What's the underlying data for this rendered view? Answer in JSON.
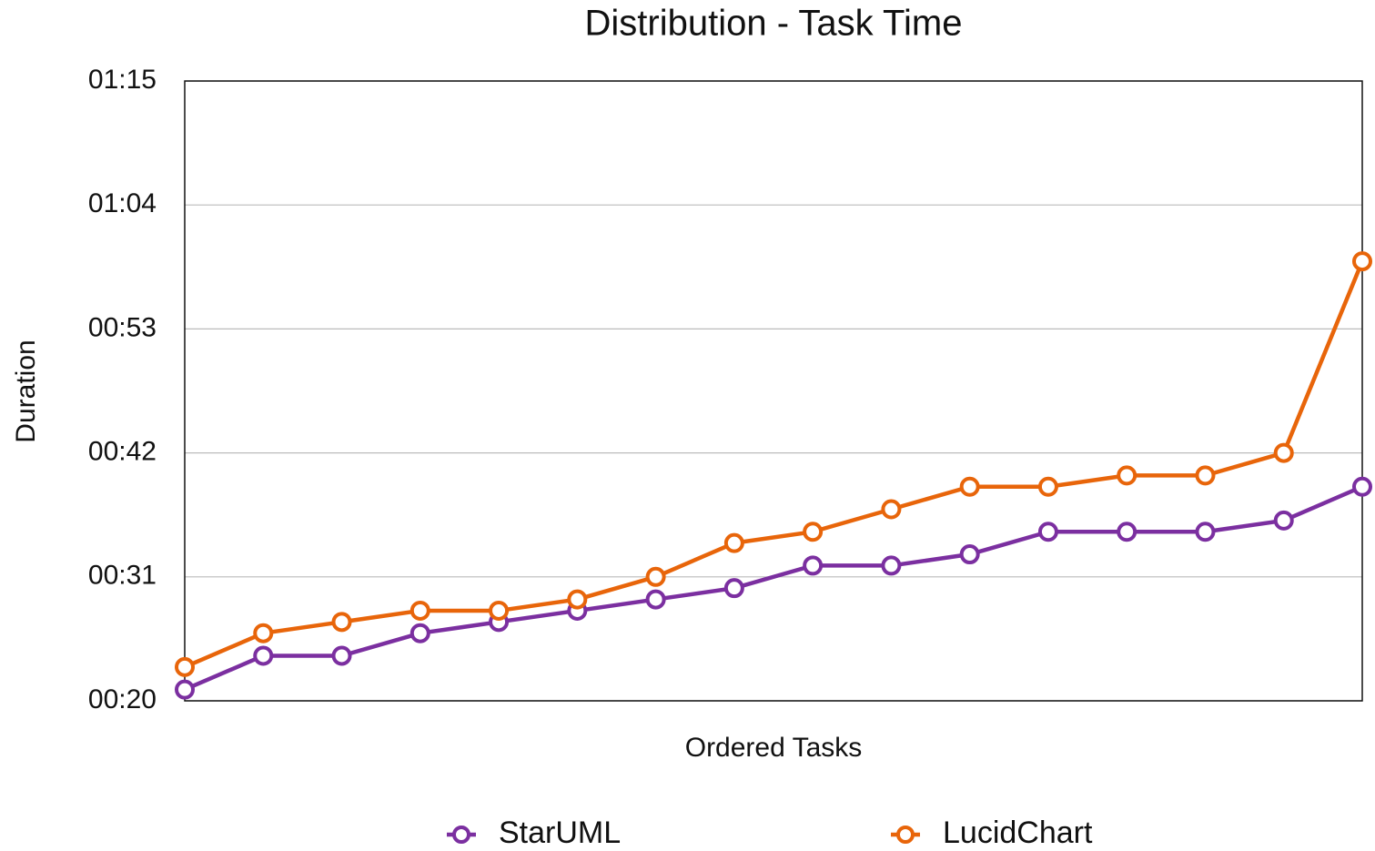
{
  "chart_data": {
    "type": "line",
    "title": "Distribution - Task Time",
    "x_label": "Ordered Tasks",
    "y_label": "Duration",
    "categories": [
      null,
      null,
      null,
      null,
      null,
      null,
      null,
      null,
      null,
      null,
      null,
      null,
      null,
      null,
      null,
      null
    ],
    "series": [
      {
        "name": "StarUML",
        "color": "#7b2fa0",
        "values": [
          21,
          24,
          24,
          26,
          27,
          28,
          29,
          30,
          32,
          32,
          33,
          35,
          35,
          35,
          36,
          39
        ]
      },
      {
        "name": "LucidChart",
        "color": "#e8650a",
        "values": [
          23,
          26,
          27,
          28,
          28,
          29,
          31,
          34,
          35,
          37,
          39,
          39,
          40,
          40,
          42,
          59
        ]
      }
    ],
    "ylim": [
      20,
      75
    ],
    "yticks": [
      {
        "value": 20,
        "label": "00:20"
      },
      {
        "value": 31,
        "label": "00:31"
      },
      {
        "value": 42,
        "label": "00:42"
      },
      {
        "value": 53,
        "label": "00:53"
      },
      {
        "value": 64,
        "label": "01:04"
      },
      {
        "value": 75,
        "label": "01:15"
      }
    ],
    "grid": true,
    "legend": "bottom"
  }
}
